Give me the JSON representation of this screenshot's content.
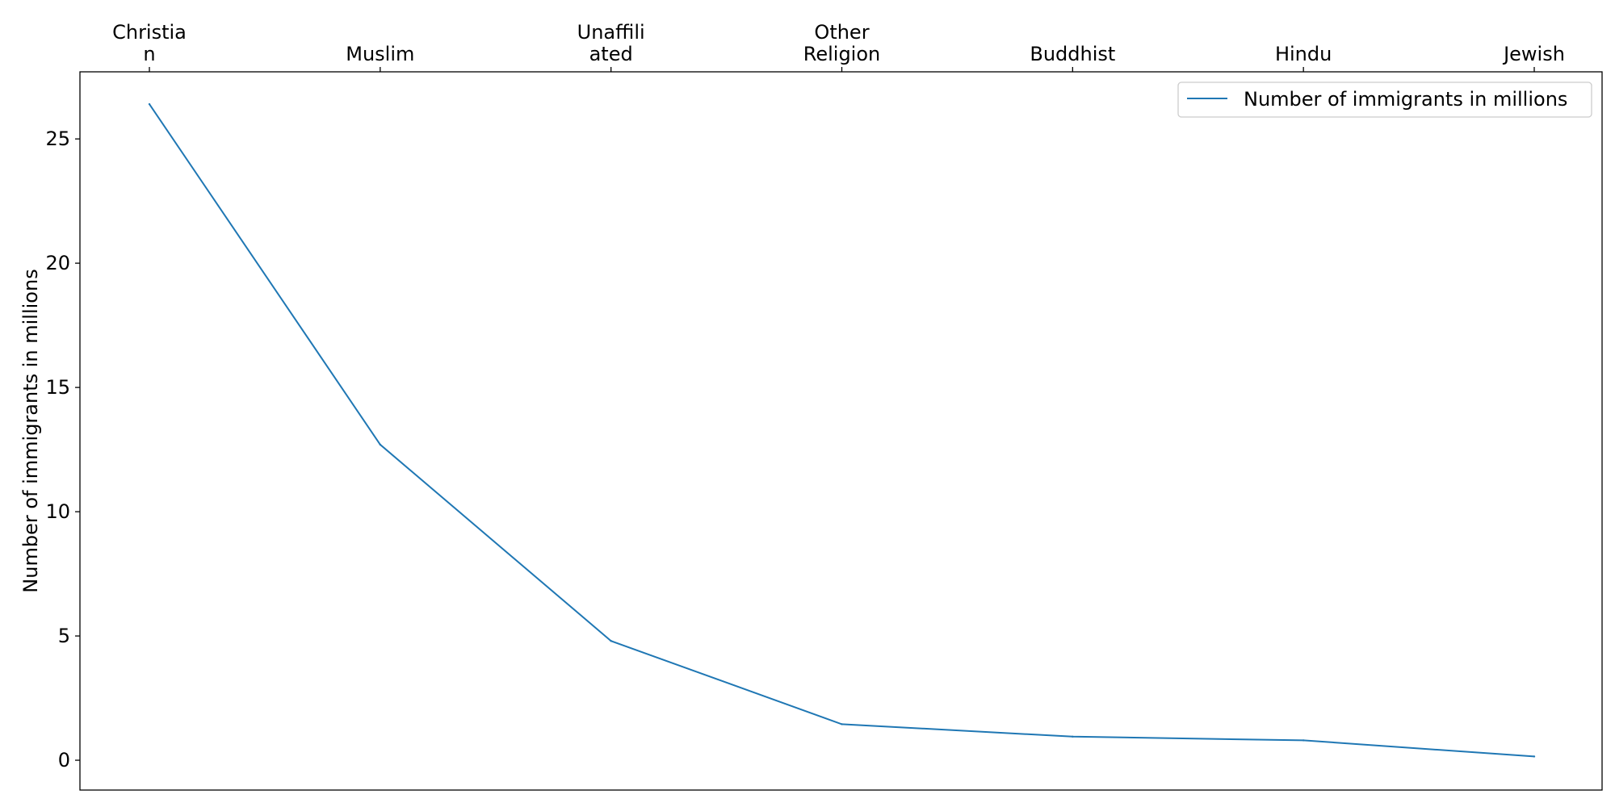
{
  "chart_data": {
    "type": "line",
    "title": "",
    "xlabel": "",
    "ylabel": "Number of immigrants in millions",
    "x_axis_position": "top",
    "categories": [
      [
        "Christia",
        "n"
      ],
      [
        "Muslim"
      ],
      [
        "Unaffili",
        "ated"
      ],
      [
        "Other",
        "Religion"
      ],
      [
        "Buddhist"
      ],
      [
        "Hindu"
      ],
      [
        "Jewish"
      ]
    ],
    "series": [
      {
        "name": "Number of immigrants in millions",
        "color": "#1f77b4",
        "values": [
          26.4,
          12.7,
          4.8,
          1.45,
          0.95,
          0.8,
          0.15
        ]
      }
    ],
    "ylim": [
      -1.2,
      27.7
    ],
    "yticks": [
      "0",
      "5",
      "10",
      "15",
      "20",
      "25"
    ],
    "grid": false,
    "legend_position": "top-right"
  }
}
